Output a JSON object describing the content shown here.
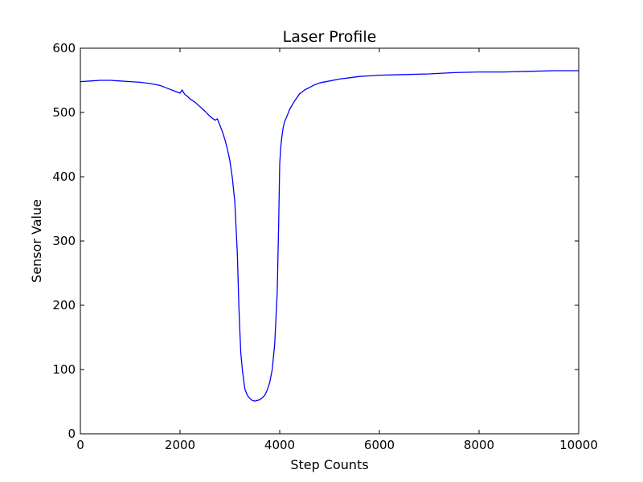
{
  "chart_data": {
    "type": "line",
    "title": "Laser Profile",
    "xlabel": "Step Counts",
    "ylabel": "Sensor Value",
    "xlim": [
      0,
      10000
    ],
    "ylim": [
      0,
      600
    ],
    "xticks": [
      0,
      2000,
      4000,
      6000,
      8000,
      10000
    ],
    "yticks": [
      0,
      100,
      200,
      300,
      400,
      500,
      600
    ],
    "grid": false,
    "legend": "none",
    "series": [
      {
        "color": "#0000ff",
        "x": [
          0,
          200,
          400,
          600,
          800,
          1000,
          1200,
          1400,
          1600,
          1700,
          1800,
          1900,
          2000,
          2040,
          2080,
          2100,
          2150,
          2200,
          2300,
          2400,
          2500,
          2600,
          2700,
          2750,
          2780,
          2800,
          2850,
          2900,
          2950,
          3000,
          3050,
          3100,
          3150,
          3180,
          3200,
          3220,
          3250,
          3280,
          3300,
          3350,
          3400,
          3450,
          3500,
          3550,
          3600,
          3650,
          3700,
          3750,
          3800,
          3850,
          3900,
          3950,
          3980,
          4000,
          4020,
          4040,
          4060,
          4080,
          4100,
          4150,
          4200,
          4300,
          4400,
          4500,
          4600,
          4700,
          4800,
          5000,
          5200,
          5300,
          5400,
          5600,
          5800,
          6000,
          6500,
          7000,
          7500,
          8000,
          8500,
          9000,
          9500,
          10000
        ],
        "y": [
          548,
          549,
          550,
          550,
          549,
          548,
          547,
          545,
          542,
          539,
          536,
          533,
          530,
          535,
          530,
          528,
          525,
          521,
          516,
          509,
          502,
          494,
          488,
          490,
          484,
          480,
          470,
          458,
          443,
          425,
          398,
          360,
          280,
          200,
          160,
          125,
          100,
          82,
          70,
          60,
          55,
          52,
          51,
          52,
          53,
          56,
          60,
          68,
          80,
          100,
          140,
          220,
          330,
          420,
          445,
          460,
          472,
          480,
          486,
          495,
          505,
          518,
          529,
          535,
          539,
          543,
          546,
          549,
          552,
          553,
          554,
          556,
          557,
          558,
          559,
          560,
          562,
          563,
          563,
          564,
          565,
          565
        ]
      }
    ]
  }
}
